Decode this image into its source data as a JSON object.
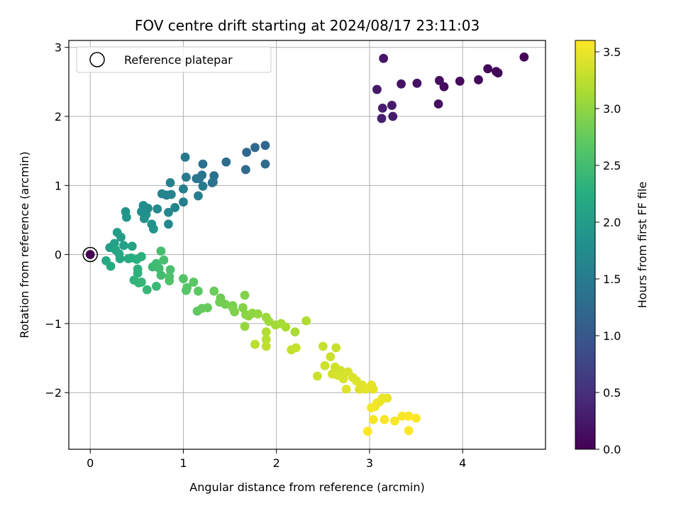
{
  "chart_data": {
    "type": "scatter",
    "title": "FOV centre drift starting at 2024/08/17 23:11:03",
    "xlabel": "Angular distance from reference (arcmin)",
    "ylabel": "Rotation from reference (arcmin)",
    "xlim": [
      -0.23,
      4.89
    ],
    "ylim": [
      -2.82,
      3.1
    ],
    "xticks": [
      0,
      1,
      2,
      3,
      4
    ],
    "xtick_labels": [
      "0",
      "1",
      "2",
      "3",
      "4"
    ],
    "yticks": [
      -2,
      -1,
      0,
      1,
      2,
      3
    ],
    "ytick_labels": [
      "−2",
      "−1",
      "0",
      "1",
      "2",
      "3"
    ],
    "grid": true,
    "legend": {
      "placement": "upper-left",
      "entries": [
        {
          "label": "Reference platepar",
          "marker": "open-circle"
        }
      ]
    },
    "reference_point": {
      "x": 0,
      "y": 0
    },
    "colorbar": {
      "label": "Hours from first FF file",
      "colormap": "viridis",
      "range": [
        0,
        3.6
      ],
      "ticks": [
        0,
        0.5,
        1,
        1.5,
        2,
        2.5,
        3,
        3.5
      ],
      "tick_labels": [
        "0.0",
        "0.5",
        "1.0",
        "1.5",
        "2.0",
        "2.5",
        "3.0",
        "3.5"
      ]
    },
    "series": [
      {
        "points": [
          [
            0,
            0,
            0
          ],
          [
            4.66,
            2.86,
            0.02
          ],
          [
            4.36,
            2.65,
            0.04
          ],
          [
            4.38,
            2.63,
            0.05
          ],
          [
            4.27,
            2.69,
            0.06
          ],
          [
            4.17,
            2.53,
            0.08
          ],
          [
            3.97,
            2.51,
            0.1
          ],
          [
            3.8,
            2.43,
            0.12
          ],
          [
            3.75,
            2.52,
            0.14
          ],
          [
            3.74,
            2.18,
            0.15
          ],
          [
            3.51,
            2.48,
            0.18
          ],
          [
            3.34,
            2.47,
            0.2
          ],
          [
            3.15,
            2.84,
            0.22
          ],
          [
            3.08,
            2.39,
            0.24
          ],
          [
            3.24,
            2.16,
            0.26
          ],
          [
            3.25,
            2.0,
            0.28
          ],
          [
            3.14,
            2.12,
            0.3
          ],
          [
            3.13,
            1.97,
            0.32
          ],
          [
            1.88,
            1.58,
            1.2
          ],
          [
            1.77,
            1.55,
            1.22
          ],
          [
            1.68,
            1.48,
            1.24
          ],
          [
            1.88,
            1.31,
            1.26
          ],
          [
            1.67,
            1.23,
            1.28
          ],
          [
            1.46,
            1.34,
            1.3
          ],
          [
            1.21,
            1.31,
            1.32
          ],
          [
            1.33,
            1.14,
            1.34
          ],
          [
            1.2,
            1.15,
            1.36
          ],
          [
            1.31,
            1.04,
            1.38
          ],
          [
            1.32,
            1.05,
            1.4
          ],
          [
            1.17,
            1.1,
            1.42
          ],
          [
            1.14,
            1.1,
            1.44
          ],
          [
            1.02,
            1.41,
            1.46
          ],
          [
            1.03,
            1.12,
            1.48
          ],
          [
            1.21,
            0.99,
            1.5
          ],
          [
            1.16,
            0.85,
            1.52
          ],
          [
            1.0,
            0.95,
            1.54
          ],
          [
            1.0,
            0.76,
            1.56
          ],
          [
            0.86,
            1.04,
            1.58
          ],
          [
            0.87,
            0.87,
            1.6
          ],
          [
            0.82,
            0.86,
            1.62
          ],
          [
            0.77,
            0.88,
            1.64
          ],
          [
            0.91,
            0.68,
            1.66
          ],
          [
            0.84,
            0.61,
            1.68
          ],
          [
            0.84,
            0.44,
            1.7
          ],
          [
            0.72,
            0.66,
            1.72
          ],
          [
            0.62,
            0.67,
            1.74
          ],
          [
            0.57,
            0.71,
            1.76
          ],
          [
            0.55,
            0.62,
            1.78
          ],
          [
            0.6,
            0.58,
            1.8
          ],
          [
            0.58,
            0.52,
            1.82
          ],
          [
            0.66,
            0.44,
            1.84
          ],
          [
            0.68,
            0.37,
            1.86
          ],
          [
            0.38,
            0.62,
            1.88
          ],
          [
            0.39,
            0.54,
            1.9
          ],
          [
            0.29,
            0.32,
            2.0
          ],
          [
            0.33,
            0.25,
            2.02
          ],
          [
            0.21,
            0.1,
            2.04
          ],
          [
            0.26,
            0.16,
            2.06
          ],
          [
            0.36,
            0.13,
            2.08
          ],
          [
            0.45,
            0.12,
            2.1
          ],
          [
            0.27,
            0.07,
            2.12
          ],
          [
            0.31,
            0.01,
            2.14
          ],
          [
            0.32,
            -0.06,
            2.16
          ],
          [
            0.17,
            -0.09,
            2.18
          ],
          [
            0.22,
            -0.17,
            2.2
          ],
          [
            0.41,
            -0.06,
            2.22
          ],
          [
            0.44,
            -0.05,
            2.24
          ],
          [
            0.5,
            -0.07,
            2.26
          ],
          [
            0.55,
            -0.03,
            2.28
          ],
          [
            0.51,
            -0.21,
            2.3
          ],
          [
            0.51,
            -0.27,
            2.32
          ],
          [
            0.47,
            -0.37,
            2.34
          ],
          [
            0.52,
            -0.41,
            2.36
          ],
          [
            0.55,
            -0.4,
            2.38
          ],
          [
            0.61,
            -0.51,
            2.4
          ],
          [
            0.71,
            -0.46,
            2.42
          ],
          [
            0.67,
            -0.18,
            2.44
          ],
          [
            0.71,
            -0.13,
            2.46
          ],
          [
            0.74,
            -0.2,
            2.48
          ],
          [
            0.76,
            -0.3,
            2.5
          ],
          [
            0.76,
            0.05,
            2.52
          ],
          [
            0.79,
            -0.08,
            2.54
          ],
          [
            0.86,
            -0.22,
            2.56
          ],
          [
            0.85,
            -0.32,
            2.58
          ],
          [
            0.85,
            -0.38,
            2.6
          ],
          [
            1.0,
            -0.35,
            2.62
          ],
          [
            1.04,
            -0.48,
            2.64
          ],
          [
            1.03,
            -0.52,
            2.66
          ],
          [
            1.11,
            -0.4,
            2.68
          ],
          [
            1.16,
            -0.53,
            2.7
          ],
          [
            1.15,
            -0.82,
            2.72
          ],
          [
            1.2,
            -0.78,
            2.74
          ],
          [
            1.26,
            -0.77,
            2.76
          ],
          [
            1.33,
            -0.53,
            2.78
          ],
          [
            1.4,
            -0.63,
            2.8
          ],
          [
            1.39,
            -0.69,
            2.82
          ],
          [
            1.45,
            -0.72,
            2.84
          ],
          [
            1.53,
            -0.74,
            2.86
          ],
          [
            1.53,
            -0.77,
            2.88
          ],
          [
            1.55,
            -0.83,
            2.9
          ],
          [
            1.66,
            -0.59,
            2.92
          ],
          [
            1.64,
            -0.77,
            2.94
          ],
          [
            1.67,
            -0.87,
            2.96
          ],
          [
            1.7,
            -0.89,
            2.98
          ],
          [
            1.74,
            -0.85,
            3.0
          ],
          [
            1.8,
            -0.86,
            3.02
          ],
          [
            1.66,
            -1.04,
            3.04
          ],
          [
            1.89,
            -0.91,
            3.06
          ],
          [
            1.92,
            -0.97,
            3.08
          ],
          [
            1.99,
            -1.02,
            3.1
          ],
          [
            2.05,
            -1.0,
            3.12
          ],
          [
            2.1,
            -1.05,
            3.14
          ],
          [
            2.2,
            -1.12,
            3.16
          ],
          [
            2.32,
            -0.96,
            3.18
          ],
          [
            1.89,
            -1.12,
            3.2
          ],
          [
            1.89,
            -1.23,
            3.22
          ],
          [
            1.77,
            -1.3,
            3.24
          ],
          [
            1.89,
            -1.33,
            3.26
          ],
          [
            2.16,
            -1.38,
            3.28
          ],
          [
            2.21,
            -1.35,
            3.3
          ]
        ]
      },
      {
        "points": [
          [
            2.5,
            -1.33,
            3.3
          ],
          [
            2.64,
            -1.35,
            3.31
          ],
          [
            2.44,
            -1.76,
            3.32
          ],
          [
            2.58,
            -1.48,
            3.33
          ],
          [
            2.52,
            -1.61,
            3.34
          ],
          [
            2.63,
            -1.63,
            3.35
          ],
          [
            2.69,
            -1.68,
            3.36
          ],
          [
            2.6,
            -1.73,
            3.37
          ],
          [
            2.66,
            -1.75,
            3.38
          ],
          [
            2.72,
            -1.8,
            3.39
          ],
          [
            2.77,
            -1.7,
            3.4
          ],
          [
            2.82,
            -1.78,
            3.41
          ],
          [
            2.86,
            -1.83,
            3.42
          ],
          [
            2.89,
            -1.95,
            3.43
          ],
          [
            2.75,
            -1.95,
            3.44
          ],
          [
            2.92,
            -1.89,
            3.45
          ],
          [
            2.96,
            -1.95,
            3.46
          ],
          [
            3.02,
            -1.89,
            3.47
          ],
          [
            3.04,
            -1.95,
            3.48
          ],
          [
            3.14,
            -2.08,
            3.49
          ],
          [
            3.19,
            -2.08,
            3.5
          ],
          [
            3.11,
            -2.13,
            3.51
          ],
          [
            3.08,
            -2.15,
            3.52
          ],
          [
            3.06,
            -2.2,
            3.53
          ],
          [
            3.02,
            -2.22,
            3.54
          ],
          [
            3.04,
            -2.39,
            3.55
          ],
          [
            3.16,
            -2.39,
            3.56
          ],
          [
            3.27,
            -2.41,
            3.57
          ],
          [
            3.35,
            -2.34,
            3.58
          ],
          [
            3.42,
            -2.34,
            3.59
          ],
          [
            3.5,
            -2.37,
            3.6
          ],
          [
            3.42,
            -2.55,
            3.6
          ],
          [
            2.98,
            -2.56,
            3.6
          ]
        ]
      }
    ]
  }
}
